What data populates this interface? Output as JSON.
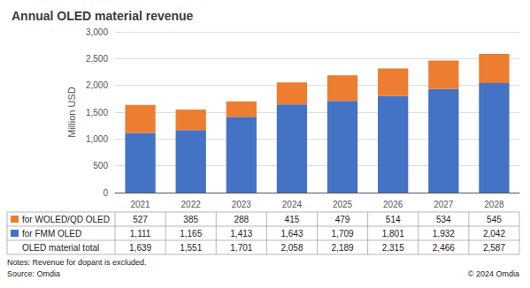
{
  "chart_data": {
    "type": "bar",
    "title": "Annual OLED material revenue",
    "categories": [
      "2021",
      "2022",
      "2023",
      "2024",
      "2025",
      "2026",
      "2027",
      "2028"
    ],
    "series": [
      {
        "name": "for FMM OLED",
        "color": "#4472C4",
        "values": [
          1111,
          1165,
          1413,
          1643,
          1709,
          1801,
          1932,
          2042
        ],
        "value_labels": [
          "1,111",
          "1,165",
          "1,413",
          "1,643",
          "1,709",
          "1,801",
          "1,932",
          "2,042"
        ]
      },
      {
        "name": "for WOLED/QD OLED",
        "color": "#ED7D31",
        "values": [
          527,
          385,
          288,
          415,
          479,
          514,
          534,
          545
        ]
      }
    ],
    "totals": {
      "name": "OLED material total",
      "values": [
        1639,
        1551,
        1701,
        2058,
        2189,
        2315,
        2466,
        2587
      ],
      "value_labels": [
        "1,639",
        "1,551",
        "1,701",
        "2,058",
        "2,189",
        "2,315",
        "2,466",
        "2,587"
      ]
    },
    "stacked": true,
    "ylabel": "Million USD",
    "ylim": [
      0,
      3000
    ],
    "yticks": [
      0,
      500,
      {
        "value": 1000,
        "label": "1,000"
      },
      {
        "value": 1500,
        "label": "1,500"
      },
      {
        "value": 2000,
        "label": "2,000"
      },
      {
        "value": 2500,
        "label": "2,500"
      },
      {
        "value": 3000,
        "label": "3,000"
      }
    ],
    "grid": true,
    "annotations": [
      "Notes: Revenue for dopant is excluded.",
      "Source: Omdia",
      "© 2024 Omdia"
    ]
  }
}
